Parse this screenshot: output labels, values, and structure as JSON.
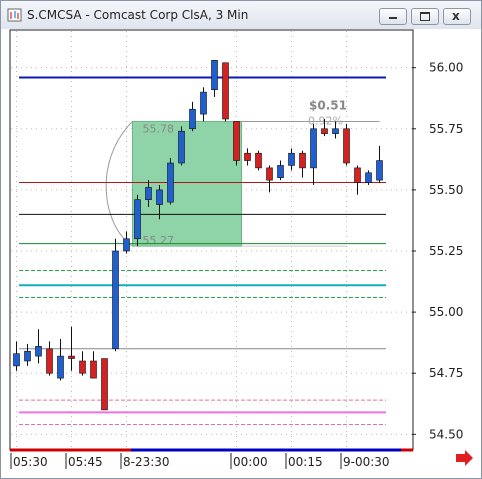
{
  "chart_data": {
    "type": "candlestick",
    "title": "S.CMCSA - Comcast Corp ClsA, 3 Min",
    "categories": [
      "05:30",
      null,
      null,
      null,
      null,
      "05:45",
      null,
      null,
      null,
      null,
      "8-23:30",
      null,
      null,
      null,
      null,
      null,
      null,
      null,
      null,
      null,
      "00:00",
      null,
      null,
      null,
      null,
      "00:15",
      null,
      null,
      null,
      null,
      "9-00:30",
      null,
      null,
      null
    ],
    "open": [
      54.78,
      54.8,
      54.82,
      54.85,
      54.73,
      54.82,
      54.8,
      54.8,
      54.81,
      54.85,
      55.25,
      55.3,
      55.46,
      55.44,
      55.45,
      55.61,
      55.75,
      55.81,
      55.91,
      56.02,
      55.78,
      55.65,
      55.65,
      55.59,
      55.55,
      55.6,
      55.65,
      55.59,
      55.75,
      55.73,
      55.75,
      55.59,
      55.53,
      55.54
    ],
    "high": [
      54.88,
      54.87,
      54.93,
      54.88,
      54.89,
      54.94,
      54.84,
      54.84,
      54.81,
      55.3,
      55.33,
      55.48,
      55.54,
      55.52,
      55.63,
      55.76,
      55.86,
      55.92,
      56.03,
      56.02,
      55.78,
      55.67,
      55.66,
      55.6,
      55.62,
      55.67,
      55.66,
      55.77,
      55.79,
      55.78,
      55.77,
      55.6,
      55.58,
      55.68
    ],
    "low": [
      54.76,
      54.78,
      54.79,
      54.74,
      54.72,
      54.76,
      54.74,
      54.73,
      54.6,
      54.84,
      55.24,
      55.27,
      55.43,
      55.38,
      55.44,
      55.6,
      55.74,
      55.78,
      55.88,
      55.78,
      55.6,
      55.6,
      55.58,
      55.49,
      55.54,
      55.58,
      55.55,
      55.52,
      55.72,
      55.71,
      55.6,
      55.48,
      55.52,
      55.53
    ],
    "close": [
      54.83,
      54.84,
      54.86,
      54.75,
      54.82,
      54.81,
      54.75,
      54.73,
      54.6,
      55.25,
      55.3,
      55.46,
      55.51,
      55.5,
      55.61,
      55.74,
      55.83,
      55.9,
      56.03,
      55.79,
      55.62,
      55.62,
      55.59,
      55.54,
      55.6,
      55.65,
      55.59,
      55.75,
      55.73,
      55.75,
      55.61,
      55.53,
      55.57,
      55.62
    ],
    "up_color": "#1f5fd0",
    "down_color": "#d42222",
    "ylim": [
      54.44,
      56.15
    ],
    "yticks": [
      {
        "value": 54.5,
        "label": "54.50"
      },
      {
        "value": 54.75,
        "label": "54.75"
      },
      {
        "value": 55,
        "label": "55.00"
      },
      {
        "value": 55.25,
        "label": "55.25"
      },
      {
        "value": 55.5,
        "label": "55.50"
      },
      {
        "value": 55.75,
        "label": "55.75"
      },
      {
        "value": 56,
        "label": "56.00"
      }
    ],
    "grid": true,
    "levels": [
      {
        "value": 55.96,
        "color": "#0a1ab8",
        "width": 2,
        "dash": false
      },
      {
        "value": 55.53,
        "color": "#b01818",
        "width": 1,
        "dash": false
      },
      {
        "value": 55.4,
        "color": "#111111",
        "width": 1,
        "dash": false
      },
      {
        "value": 55.28,
        "color": "#1a8a2a",
        "width": 1,
        "dash": false
      },
      {
        "value": 55.17,
        "color": "#2ca84a",
        "width": 1,
        "dash": true
      },
      {
        "value": 55.11,
        "color": "#10b0b8",
        "width": 2,
        "dash": false
      },
      {
        "value": 55.06,
        "color": "#2ca84a",
        "width": 1,
        "dash": true
      },
      {
        "value": 54.85,
        "color": "#888888",
        "width": 1,
        "dash": false
      },
      {
        "value": 54.64,
        "color": "#e070b0",
        "width": 1,
        "dash": true
      },
      {
        "value": 54.59,
        "color": "#f070e0",
        "width": 2,
        "dash": false
      },
      {
        "value": 54.54,
        "color": "#e070b0",
        "width": 1,
        "dash": true
      }
    ],
    "box": {
      "high": 55.78,
      "low": 55.27,
      "color": "#8fd4a8"
    },
    "annotations": [
      "$0.51",
      "0.92%"
    ]
  }
}
